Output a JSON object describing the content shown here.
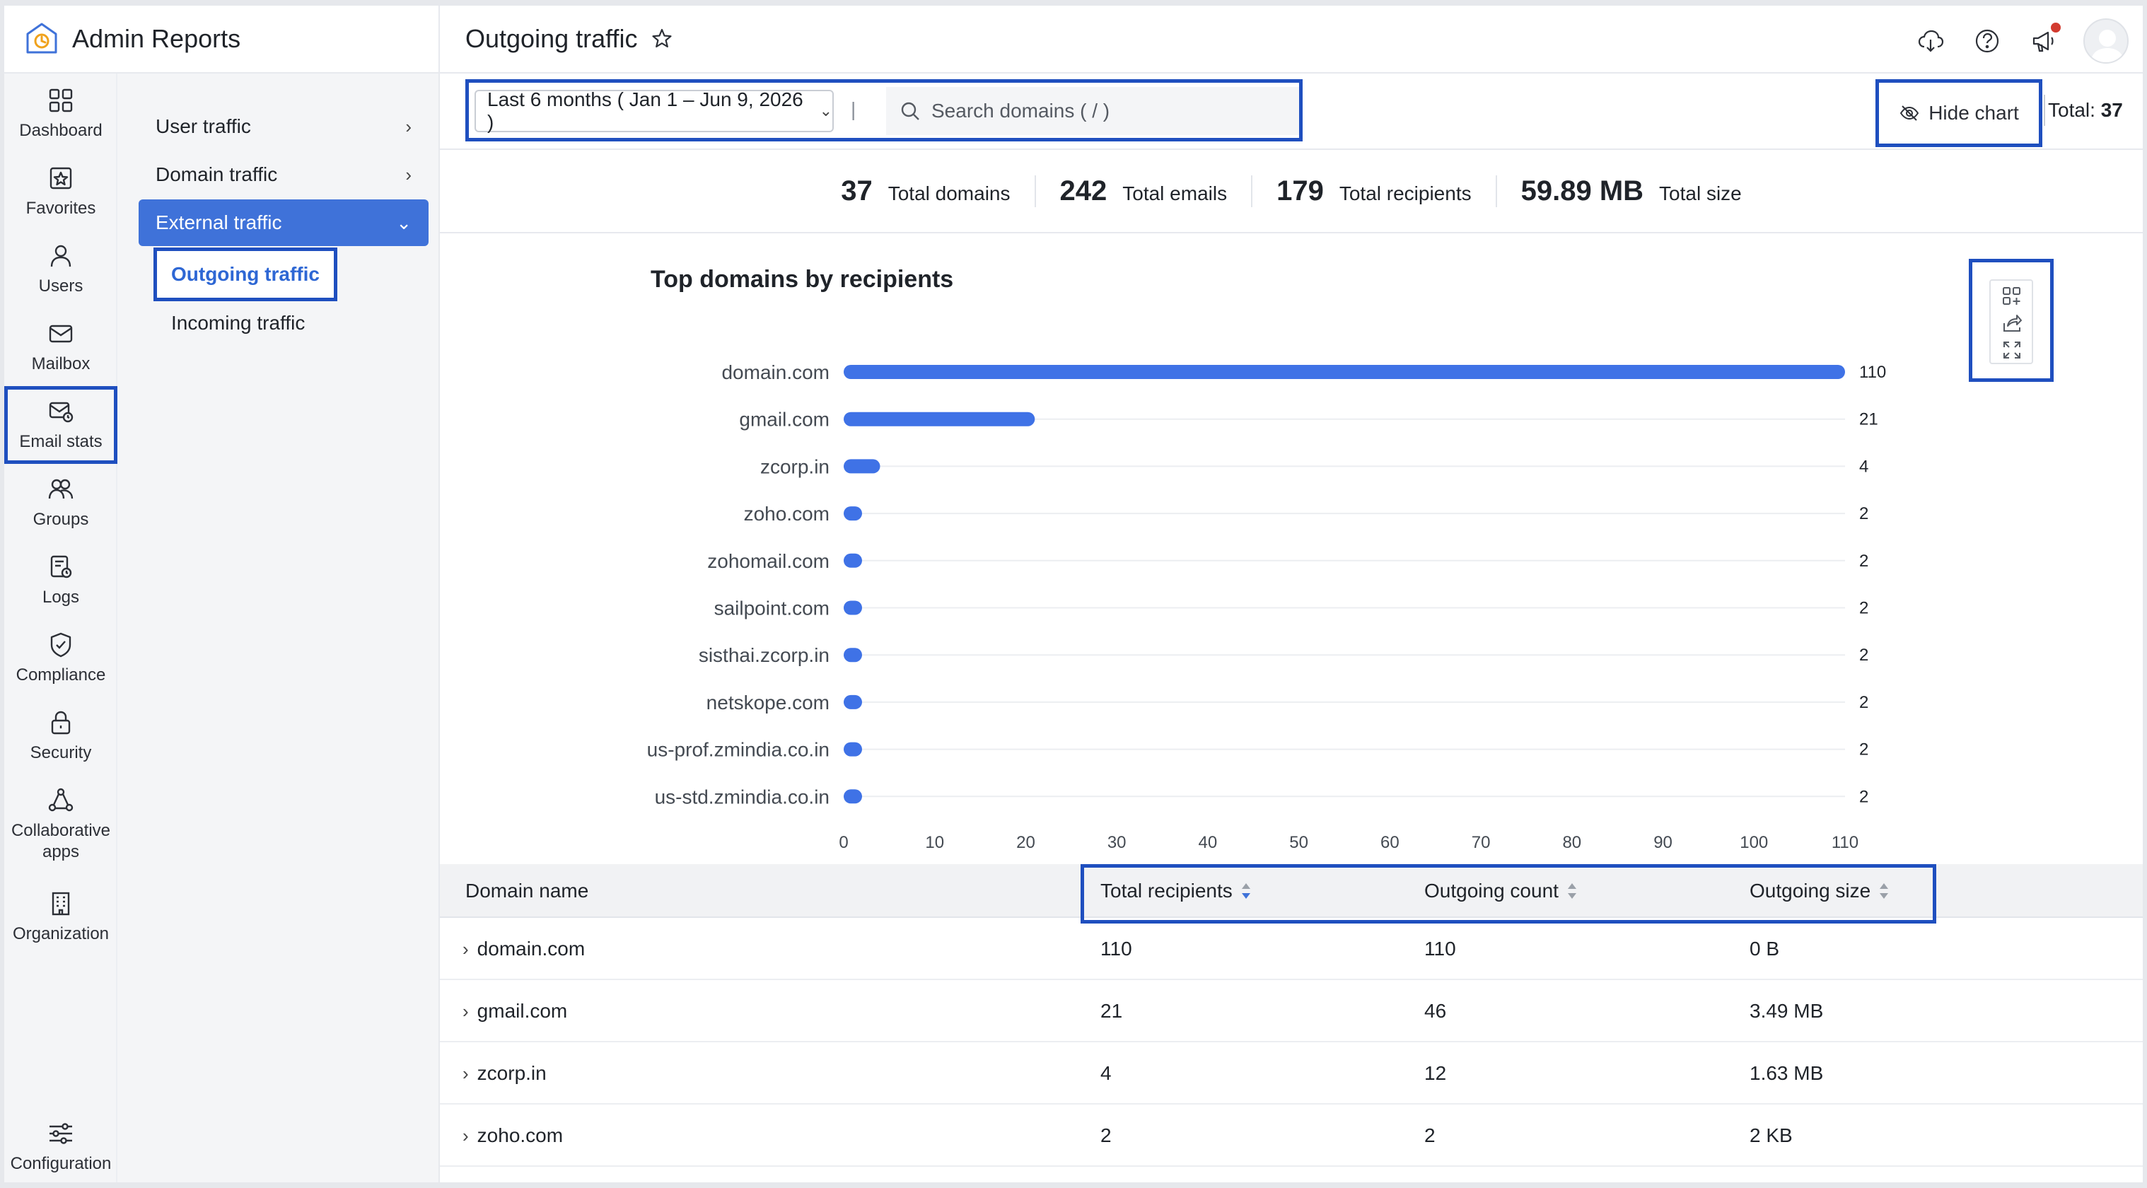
{
  "app": {
    "title": "Admin Reports"
  },
  "rail": {
    "items": [
      {
        "label": "Dashboard",
        "icon": "dashboard-icon"
      },
      {
        "label": "Favorites",
        "icon": "favorites-icon"
      },
      {
        "label": "Users",
        "icon": "users-icon"
      },
      {
        "label": "Mailbox",
        "icon": "mailbox-icon"
      },
      {
        "label": "Email stats",
        "icon": "email-stats-icon",
        "selected": true
      },
      {
        "label": "Groups",
        "icon": "groups-icon"
      },
      {
        "label": "Logs",
        "icon": "logs-icon"
      },
      {
        "label": "Compliance",
        "icon": "compliance-icon"
      },
      {
        "label": "Security",
        "icon": "lock-icon"
      },
      {
        "label": "Collaborative apps",
        "icon": "collaborative-apps-icon"
      },
      {
        "label": "Organization",
        "icon": "organization-icon"
      }
    ],
    "bottom": {
      "label": "Configuration",
      "icon": "sliders-icon"
    }
  },
  "subnav": {
    "items": [
      {
        "label": "User traffic"
      },
      {
        "label": "Domain traffic"
      },
      {
        "label": "External traffic",
        "expanded": true
      }
    ],
    "children": [
      {
        "label": "Outgoing traffic",
        "selected": true
      },
      {
        "label": "Incoming traffic"
      }
    ]
  },
  "header": {
    "title": "Outgoing traffic"
  },
  "toolbar": {
    "date_range": "Last 6 months ( Jan 1 – Jun 9, 2026 )",
    "separator": "|",
    "search_placeholder": "Search domains ( / )",
    "hide_chart_label": "Hide chart",
    "total_label": "Total:",
    "total_value": "37"
  },
  "stats": [
    {
      "value": "37",
      "label": "Total domains"
    },
    {
      "value": "242",
      "label": "Total emails"
    },
    {
      "value": "179",
      "label": "Total recipients"
    },
    {
      "value": "59.89 MB",
      "label": "Total size"
    }
  ],
  "chart_data": {
    "type": "bar",
    "orientation": "horizontal",
    "title": "Top domains by recipients",
    "categories": [
      "domain.com",
      "gmail.com",
      "zcorp.in",
      "zoho.com",
      "zohomail.com",
      "sailpoint.com",
      "sisthai.zcorp.in",
      "netskope.com",
      "us-prof.zmindia.co.in",
      "us-std.zmindia.co.in"
    ],
    "values": [
      110,
      21,
      4,
      2,
      2,
      2,
      2,
      2,
      2,
      2
    ],
    "xlim": [
      0,
      110
    ],
    "xticks": [
      0,
      10,
      20,
      30,
      40,
      50,
      60,
      70,
      80,
      90,
      100,
      110
    ],
    "grid": true,
    "bar_color": "#3f72e6"
  },
  "table": {
    "columns": [
      "Domain name",
      "Total recipients",
      "Outgoing count",
      "Outgoing size"
    ],
    "rows": [
      [
        "domain.com",
        "110",
        "110",
        "0 B"
      ],
      [
        "gmail.com",
        "21",
        "46",
        "3.49 MB"
      ],
      [
        "zcorp.in",
        "4",
        "12",
        "1.63 MB"
      ],
      [
        "zoho.com",
        "2",
        "2",
        "2 KB"
      ]
    ]
  },
  "colors": {
    "accent": "#3f72d9",
    "highlight_border": "#1f4fbf",
    "notification_dot": "#d23b2f"
  }
}
